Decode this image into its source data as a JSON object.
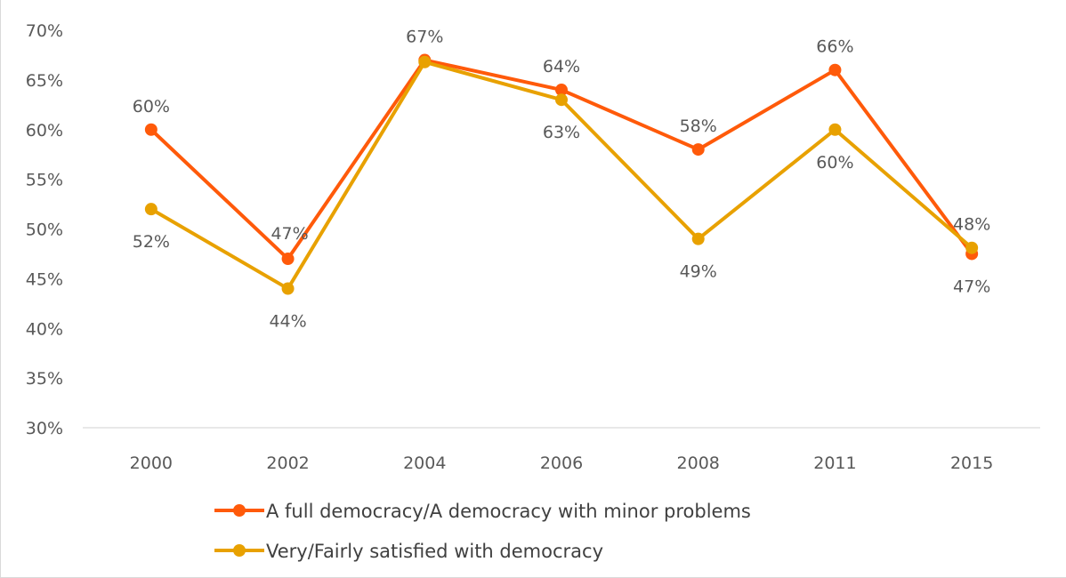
{
  "chart_data": {
    "type": "line",
    "title": "",
    "xlabel": "",
    "ylabel": "",
    "categories": [
      "2000",
      "2002",
      "2004",
      "2006",
      "2008",
      "2011",
      "2015"
    ],
    "ylim": [
      30,
      70
    ],
    "yticks": [
      30,
      35,
      40,
      45,
      50,
      55,
      60,
      65,
      70
    ],
    "ytick_labels": [
      "30%",
      "35%",
      "40%",
      "45%",
      "50%",
      "55%",
      "60%",
      "65%",
      "70%"
    ],
    "grid": false,
    "legend_position": "bottom",
    "series": [
      {
        "name": "A full democracy/A democracy with minor problems",
        "color": "#ff5a0a",
        "values": [
          60,
          47,
          67,
          64,
          58,
          66,
          47.5
        ],
        "labels": [
          "60%",
          "47%",
          "67%",
          "64%",
          "58%",
          "66%",
          "47%"
        ],
        "label_positions": [
          "above",
          "above-right",
          "above",
          "above",
          "above",
          "above",
          "below"
        ]
      },
      {
        "name": "Very/Fairly satisfied with democracy",
        "color": "#e8a100",
        "values": [
          52,
          44,
          66.8,
          63,
          49,
          60,
          48.1
        ],
        "labels": [
          "52%",
          "44%",
          "",
          "63%",
          "49%",
          "60%",
          "48%"
        ],
        "label_positions": [
          "below",
          "below",
          "none",
          "below",
          "below",
          "below",
          "above"
        ]
      }
    ]
  }
}
